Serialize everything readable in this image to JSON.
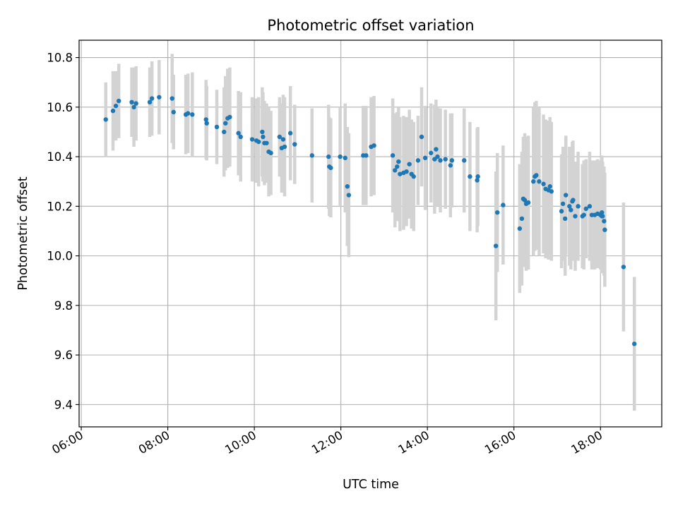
{
  "chart_data": {
    "type": "scatter",
    "title": "Photometric offset variation",
    "xlabel": "UTC time",
    "ylabel": "Photometric offset",
    "x_ticks": [
      "06:00",
      "08:00",
      "10:00",
      "12:00",
      "14:00",
      "16:00",
      "18:00"
    ],
    "y_ticks": [
      "9.4",
      "9.6",
      "9.8",
      "10.0",
      "10.2",
      "10.4",
      "10.6",
      "10.8"
    ],
    "xlim": [
      "05:57",
      "19:25"
    ],
    "ylim": [
      9.31,
      10.87
    ],
    "grid": true,
    "point_color": "#1f77b4",
    "errorbar_color": "#d3d3d3",
    "series": [
      {
        "x": [
          "06:34",
          "06:44",
          "06:48",
          "06:52",
          "07:10",
          "07:13",
          "07:16",
          "07:35",
          "07:38",
          "07:48",
          "08:06",
          "08:08",
          "08:25",
          "08:28",
          "08:34",
          "08:53",
          "08:54",
          "09:08",
          "09:18",
          "09:20",
          "09:23",
          "09:26",
          "09:38",
          "09:41",
          "09:57",
          "10:03",
          "10:06",
          "10:11",
          "10:12",
          "10:14",
          "10:17",
          "10:20",
          "10:23",
          "10:35",
          "10:38",
          "10:40",
          "10:42",
          "10:50",
          "10:56",
          "11:20",
          "11:43",
          "11:44",
          "11:46",
          "11:59",
          "12:06",
          "12:09",
          "12:11",
          "12:31",
          "12:35",
          "12:42",
          "12:46",
          "13:12",
          "13:15",
          "13:18",
          "13:20",
          "13:22",
          "13:27",
          "13:31",
          "13:35",
          "13:38",
          "13:41",
          "13:47",
          "13:52",
          "13:57",
          "14:05",
          "14:10",
          "14:12",
          "14:14",
          "14:18",
          "14:25",
          "14:32",
          "14:34",
          "14:51",
          "14:59",
          "15:09",
          "15:10",
          "15:35",
          "15:37",
          "15:45",
          "16:08",
          "16:11",
          "16:13",
          "16:15",
          "16:17",
          "16:20",
          "16:27",
          "16:29",
          "16:31",
          "16:35",
          "16:41",
          "16:44",
          "16:48",
          "16:50",
          "16:52",
          "17:06",
          "17:08",
          "17:11",
          "17:12",
          "17:17",
          "17:19",
          "17:21",
          "17:22",
          "17:25",
          "17:29",
          "17:35",
          "17:37",
          "17:40",
          "17:45",
          "17:48",
          "17:52",
          "17:56",
          "18:00",
          "18:02",
          "18:02",
          "18:03",
          "18:05",
          "18:06",
          "18:32",
          "18:47"
        ],
        "y": [
          10.55,
          10.585,
          10.605,
          10.625,
          10.62,
          10.6,
          10.615,
          10.62,
          10.635,
          10.64,
          10.635,
          10.58,
          10.57,
          10.575,
          10.57,
          10.55,
          10.535,
          10.52,
          10.5,
          10.535,
          10.555,
          10.56,
          10.495,
          10.48,
          10.47,
          10.465,
          10.46,
          10.5,
          10.48,
          10.455,
          10.455,
          10.42,
          10.415,
          10.48,
          10.435,
          10.47,
          10.44,
          10.495,
          10.45,
          10.405,
          10.4,
          10.36,
          10.355,
          10.4,
          10.395,
          10.28,
          10.245,
          10.405,
          10.405,
          10.44,
          10.445,
          10.405,
          10.345,
          10.36,
          10.38,
          10.33,
          10.335,
          10.34,
          10.37,
          10.33,
          10.32,
          10.385,
          10.48,
          10.395,
          10.415,
          10.39,
          10.43,
          10.4,
          10.385,
          10.39,
          10.365,
          10.385,
          10.385,
          10.32,
          10.305,
          10.32,
          10.04,
          10.175,
          10.205,
          10.11,
          10.15,
          10.23,
          10.225,
          10.21,
          10.215,
          10.3,
          10.32,
          10.325,
          10.3,
          10.29,
          10.27,
          10.265,
          10.28,
          10.26,
          10.18,
          10.21,
          10.15,
          10.245,
          10.2,
          10.185,
          10.22,
          10.225,
          10.16,
          10.2,
          10.16,
          10.165,
          10.19,
          10.2,
          10.165,
          10.165,
          10.17,
          10.165,
          10.175,
          10.16,
          10.16,
          10.14,
          10.105,
          9.955,
          9.645
        ],
        "yerr": [
          0.15,
          0.16,
          0.14,
          0.15,
          0.14,
          0.16,
          0.15,
          0.14,
          0.15,
          0.15,
          0.18,
          0.15,
          0.16,
          0.16,
          0.17,
          0.16,
          0.15,
          0.15,
          0.18,
          0.19,
          0.2,
          0.2,
          0.17,
          0.18,
          0.17,
          0.17,
          0.18,
          0.18,
          0.18,
          0.17,
          0.16,
          0.18,
          0.17,
          0.16,
          0.18,
          0.18,
          0.2,
          0.19,
          0.16,
          0.19,
          0.21,
          0.2,
          0.2,
          0.2,
          0.22,
          0.24,
          0.25,
          0.2,
          0.2,
          0.2,
          0.2,
          0.23,
          0.23,
          0.22,
          0.22,
          0.23,
          0.23,
          0.22,
          0.22,
          0.22,
          0.22,
          0.18,
          0.2,
          0.21,
          0.2,
          0.22,
          0.2,
          0.2,
          0.21,
          0.2,
          0.21,
          0.19,
          0.21,
          0.22,
          0.21,
          0.2,
          0.3,
          0.24,
          0.24,
          0.26,
          0.27,
          0.25,
          0.27,
          0.27,
          0.27,
          0.3,
          0.3,
          0.3,
          0.3,
          0.28,
          0.28,
          0.28,
          0.28,
          0.28,
          0.23,
          0.23,
          0.23,
          0.24,
          0.24,
          0.24,
          0.24,
          0.24,
          0.22,
          0.22,
          0.21,
          0.22,
          0.2,
          0.22,
          0.22,
          0.22,
          0.22,
          0.22,
          0.23,
          0.23,
          0.22,
          0.22,
          0.23,
          0.26,
          0.27
        ]
      }
    ]
  }
}
